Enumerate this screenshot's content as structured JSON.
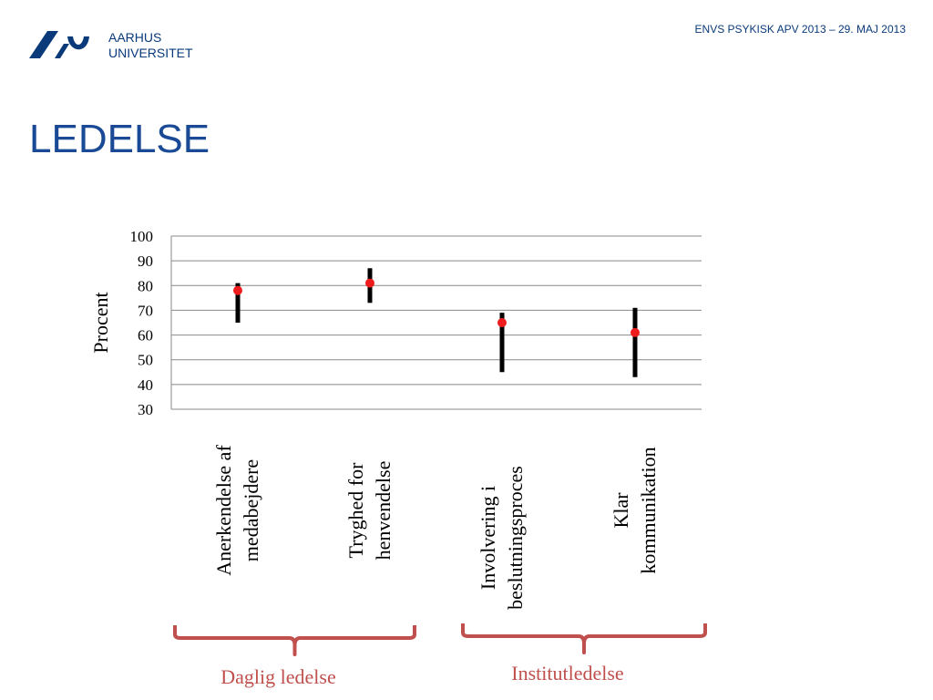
{
  "header": {
    "logo_line1": "AARHUS",
    "logo_line2": "UNIVERSITET",
    "right_text": "ENVS PSYKISK APV 2013 – 29. MAJ 2013"
  },
  "page_title": "LEDELSE",
  "groups": [
    {
      "label": "Daglig ledelse",
      "color": "#c0504d"
    },
    {
      "label": "Institutledelse",
      "color": "#c0504d"
    }
  ],
  "chart_data": {
    "type": "scatter",
    "title": "",
    "xlabel": "",
    "ylabel": "Procent",
    "ylim": [
      30,
      100
    ],
    "yticks": [
      100,
      90,
      80,
      70,
      60,
      50,
      40,
      30
    ],
    "grid": true,
    "categories": [
      [
        "Anerkendelse af",
        "medabejdere"
      ],
      [
        "Tryghed for",
        "henvendelse"
      ],
      [
        "Involvering i",
        "beslutningsproces"
      ],
      [
        "Klar",
        "kommunikation"
      ]
    ],
    "points": [
      78,
      81,
      65,
      61
    ],
    "ranges": [
      [
        65,
        81
      ],
      [
        73,
        87
      ],
      [
        45,
        69
      ],
      [
        43,
        71
      ]
    ],
    "point_color": "#ee1c1c",
    "range_color": "#000000"
  }
}
